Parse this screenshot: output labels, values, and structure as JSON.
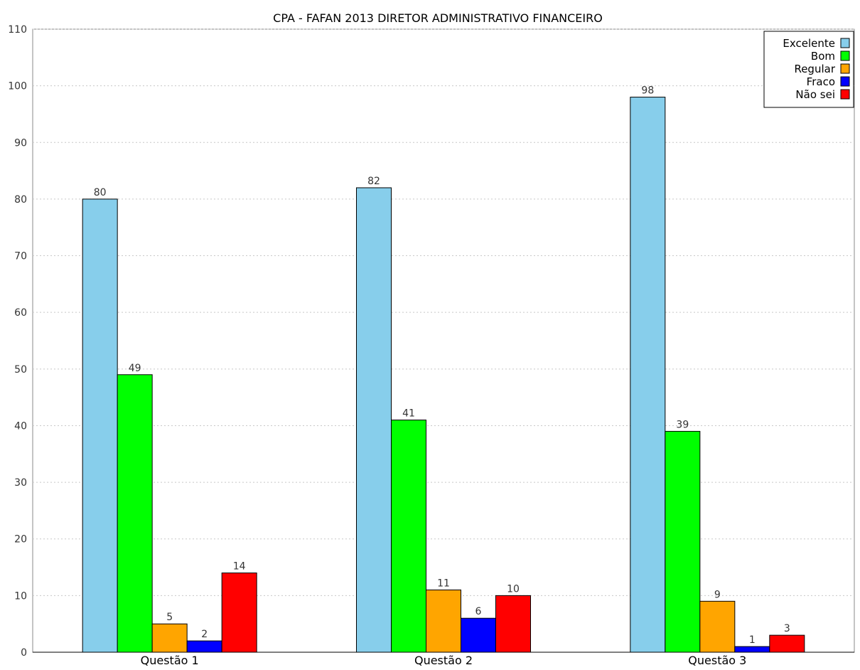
{
  "chart_data": {
    "type": "bar",
    "title": "CPA - FAFAN 2013 DIRETOR ADMINISTRATIVO FINANCEIRO",
    "xlabel": "",
    "ylabel": "",
    "categories": [
      "Questão  1",
      "Questão  2",
      "Questão  3"
    ],
    "series": [
      {
        "name": "Excelente",
        "color": "#87CEEB",
        "values": [
          80,
          82,
          98
        ]
      },
      {
        "name": "Bom",
        "color": "#00FF00",
        "values": [
          49,
          41,
          39
        ]
      },
      {
        "name": "Regular",
        "color": "#FFA500",
        "values": [
          5,
          11,
          9
        ]
      },
      {
        "name": "Fraco",
        "color": "#0000FF",
        "values": [
          2,
          6,
          1
        ]
      },
      {
        "name": "Não sei",
        "color": "#FF0000",
        "values": [
          14,
          10,
          3
        ]
      }
    ],
    "ylim": [
      0,
      110
    ],
    "yticks": [
      0,
      10,
      20,
      30,
      40,
      50,
      60,
      70,
      80,
      90,
      100,
      110
    ],
    "grid": true,
    "legend_position": "top-right"
  }
}
